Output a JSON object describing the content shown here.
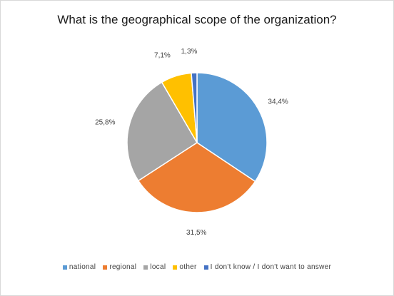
{
  "chart_data": {
    "type": "pie",
    "title": "What is the geographical scope of the organization?",
    "categories": [
      "national",
      "regional",
      "local",
      "other",
      "I don't know / I don't want to answer"
    ],
    "values": [
      34.4,
      31.5,
      25.8,
      7.1,
      1.3
    ],
    "data_labels": [
      "34,4%",
      "31,5%",
      "25,8%",
      "7,1%",
      "1,3%"
    ],
    "colors": [
      "#5b9bd5",
      "#ed7d31",
      "#a5a5a5",
      "#ffc000",
      "#4472c4"
    ],
    "legend_position": "bottom",
    "start_angle_deg": 0,
    "direction": "clockwise"
  }
}
